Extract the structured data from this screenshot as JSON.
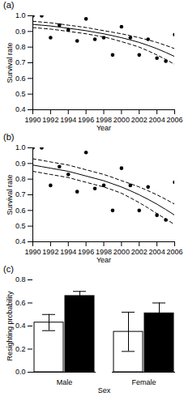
{
  "chart_data": [
    {
      "type": "line",
      "title": "(a)",
      "xlabel": "Year",
      "ylabel": "Survival rate",
      "x": [
        1990,
        1991,
        1992,
        1993,
        1994,
        1995,
        1996,
        1997,
        1998,
        1999,
        2000,
        2001,
        2002,
        2003,
        2004,
        2005,
        2006
      ],
      "xlim": [
        1990,
        2006
      ],
      "xticks": [
        1990,
        1992,
        1994,
        1996,
        1998,
        2000,
        2002,
        2004,
        2006
      ],
      "ylim": [
        0.4,
        1
      ],
      "yticks": [
        0.4,
        0.5,
        0.6,
        0.7,
        0.8,
        0.9,
        {
          "value": 1,
          "label": "1.0"
        }
      ],
      "series": [
        {
          "type": "scatter",
          "color": "#000000",
          "marker": "circle",
          "values": [
            1.0,
            1.0,
            0.86,
            0.94,
            0.91,
            0.84,
            0.98,
            0.85,
            0.86,
            0.75,
            0.93,
            0.86,
            0.75,
            0.85,
            0.73,
            0.71,
            0.88
          ]
        },
        {
          "type": "line",
          "color": "#000000",
          "line_style": "solid",
          "values": [
            0.945,
            0.94,
            0.935,
            0.928,
            0.92,
            0.913,
            0.905,
            0.895,
            0.885,
            0.873,
            0.86,
            0.846,
            0.83,
            0.811,
            0.79,
            0.766,
            0.74
          ]
        },
        {
          "type": "line",
          "color": "#000000",
          "line_style": "dashed",
          "values": [
            0.965,
            0.96,
            0.955,
            0.948,
            0.94,
            0.933,
            0.925,
            0.915,
            0.905,
            0.895,
            0.885,
            0.873,
            0.86,
            0.846,
            0.83,
            0.811,
            0.79
          ]
        },
        {
          "type": "line",
          "color": "#000000",
          "line_style": "dashed",
          "values": [
            0.925,
            0.92,
            0.915,
            0.908,
            0.9,
            0.893,
            0.885,
            0.875,
            0.865,
            0.851,
            0.835,
            0.818,
            0.8,
            0.776,
            0.75,
            0.721,
            0.69
          ]
        }
      ]
    },
    {
      "type": "line",
      "title": "(b)",
      "xlabel": "Year",
      "ylabel": "Survival rate",
      "x": [
        1990,
        1991,
        1992,
        1993,
        1994,
        1995,
        1996,
        1997,
        1998,
        1999,
        2000,
        2001,
        2002,
        2003,
        2004,
        2005,
        2006
      ],
      "xlim": [
        1990,
        2006
      ],
      "xticks": [
        1990,
        1992,
        1994,
        1996,
        1998,
        2000,
        2002,
        2004,
        2006
      ],
      "ylim": [
        0.4,
        1
      ],
      "yticks": [
        0.4,
        0.5,
        0.6,
        0.7,
        0.8,
        0.9,
        {
          "value": 1,
          "label": "1.0"
        }
      ],
      "series": [
        {
          "type": "scatter",
          "color": "#000000",
          "marker": "circle",
          "values": [
            1.0,
            1.0,
            0.76,
            0.88,
            0.83,
            0.72,
            0.97,
            0.74,
            0.76,
            0.6,
            0.87,
            0.76,
            0.6,
            0.75,
            0.57,
            0.54,
            0.78
          ]
        },
        {
          "type": "line",
          "color": "#000000",
          "line_style": "solid",
          "values": [
            0.89,
            0.88,
            0.87,
            0.86,
            0.85,
            0.835,
            0.82,
            0.805,
            0.79,
            0.77,
            0.75,
            0.726,
            0.7,
            0.671,
            0.64,
            0.606,
            0.57
          ]
        },
        {
          "type": "line",
          "color": "#000000",
          "line_style": "dashed",
          "values": [
            0.93,
            0.92,
            0.91,
            0.9,
            0.89,
            0.875,
            0.86,
            0.845,
            0.83,
            0.811,
            0.79,
            0.771,
            0.75,
            0.726,
            0.7,
            0.671,
            0.64
          ]
        },
        {
          "type": "line",
          "color": "#000000",
          "line_style": "dashed",
          "values": [
            0.85,
            0.84,
            0.83,
            0.82,
            0.81,
            0.795,
            0.78,
            0.765,
            0.75,
            0.731,
            0.71,
            0.681,
            0.65,
            0.616,
            0.58,
            0.545,
            0.51
          ]
        }
      ]
    },
    {
      "type": "bar",
      "title": "(c)",
      "xlabel": "Sex",
      "ylabel": "Resighting probability",
      "categories": [
        "Male",
        "Female"
      ],
      "ylim": [
        0,
        0.8
      ],
      "yticks": [
        {
          "value": 0,
          "label": "0.0"
        },
        0.2,
        0.4,
        0.6,
        0.8
      ],
      "series": [
        {
          "color": "#ffffff",
          "values": [
            0.43,
            0.35
          ],
          "errors": [
            0.07,
            0.17
          ]
        },
        {
          "color": "#000000",
          "values": [
            0.66,
            0.51
          ],
          "errors": [
            0.04,
            0.09
          ]
        }
      ]
    }
  ]
}
